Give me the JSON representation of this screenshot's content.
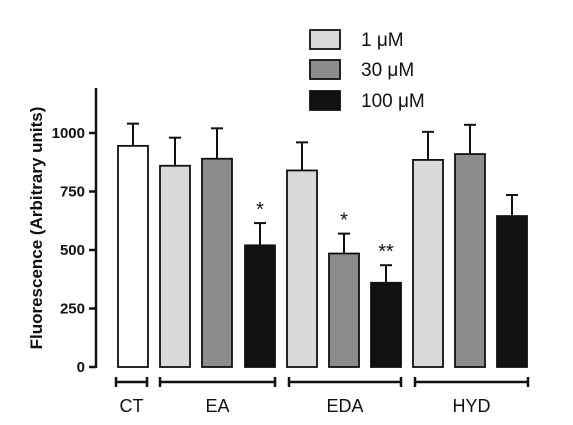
{
  "chart_data": {
    "type": "bar",
    "ylabel": "Fluorescence (Arbitrary units)",
    "ylim": [
      0,
      1200
    ],
    "yticks": [
      0,
      250,
      500,
      750,
      1000
    ],
    "ytick_labels": [
      "0",
      "250",
      "500",
      "750",
      "1000"
    ],
    "legend": {
      "placement": "top",
      "entries": [
        {
          "label": "1 μM",
          "color": "#d9d9d9"
        },
        {
          "label": "30 μM",
          "color": "#8c8c8c"
        },
        {
          "label": "100 μM",
          "color": "#111111"
        }
      ]
    },
    "groups": [
      {
        "label": "CT",
        "bars": [
          {
            "series": "CT",
            "color": "#ffffff",
            "value": 945,
            "error": 95,
            "annotation": ""
          }
        ]
      },
      {
        "label": "EA",
        "bars": [
          {
            "series": "1 μM",
            "color": "#d9d9d9",
            "value": 860,
            "error": 120,
            "annotation": ""
          },
          {
            "series": "30 μM",
            "color": "#8c8c8c",
            "value": 890,
            "error": 130,
            "annotation": ""
          },
          {
            "series": "100 μM",
            "color": "#111111",
            "value": 520,
            "error": 95,
            "annotation": "*"
          }
        ]
      },
      {
        "label": "EDA",
        "bars": [
          {
            "series": "1 μM",
            "color": "#d9d9d9",
            "value": 840,
            "error": 120,
            "annotation": ""
          },
          {
            "series": "30 μM",
            "color": "#8c8c8c",
            "value": 485,
            "error": 85,
            "annotation": "*"
          },
          {
            "series": "100 μM",
            "color": "#111111",
            "value": 360,
            "error": 75,
            "annotation": "**"
          }
        ]
      },
      {
        "label": "HYD",
        "bars": [
          {
            "series": "1 μM",
            "color": "#d9d9d9",
            "value": 885,
            "error": 120,
            "annotation": ""
          },
          {
            "series": "30 μM",
            "color": "#8c8c8c",
            "value": 910,
            "error": 125,
            "annotation": ""
          },
          {
            "series": "100 μM",
            "color": "#111111",
            "value": 645,
            "error": 90,
            "annotation": ""
          }
        ]
      }
    ]
  }
}
